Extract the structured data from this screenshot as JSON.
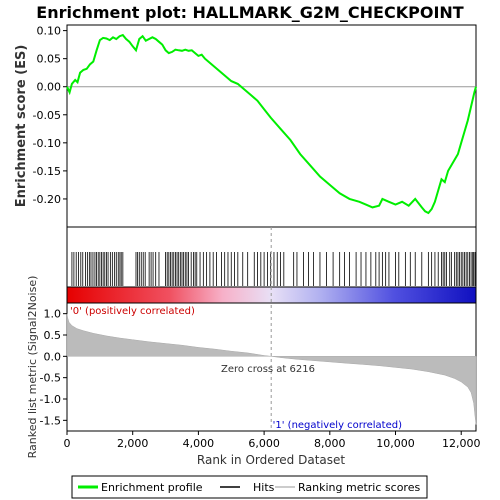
{
  "chart_data": {
    "type": "line",
    "title": "Enrichment plot: HALLMARK_G2M_CHECKPOINT",
    "es_panel": {
      "ylabel": "Enrichment score (ES)",
      "ylim": [
        -0.25,
        0.11
      ],
      "yticks": [
        0.1,
        0.05,
        0.0,
        -0.05,
        -0.1,
        -0.15,
        -0.2
      ],
      "ytick_labels": [
        "0.10",
        "0.05",
        "0.00",
        "-0.05",
        "-0.10",
        "-0.15",
        "-0.20"
      ],
      "series_color": "#00ee00",
      "profile": [
        [
          0,
          0.0
        ],
        [
          80,
          -0.01
        ],
        [
          150,
          0.005
        ],
        [
          250,
          0.012
        ],
        [
          320,
          0.008
        ],
        [
          400,
          0.025
        ],
        [
          500,
          0.03
        ],
        [
          600,
          0.032
        ],
        [
          700,
          0.04
        ],
        [
          800,
          0.045
        ],
        [
          900,
          0.065
        ],
        [
          1000,
          0.083
        ],
        [
          1100,
          0.087
        ],
        [
          1200,
          0.086
        ],
        [
          1300,
          0.083
        ],
        [
          1400,
          0.088
        ],
        [
          1500,
          0.085
        ],
        [
          1600,
          0.09
        ],
        [
          1700,
          0.092
        ],
        [
          1800,
          0.085
        ],
        [
          1900,
          0.08
        ],
        [
          2000,
          0.072
        ],
        [
          2100,
          0.065
        ],
        [
          2200,
          0.085
        ],
        [
          2300,
          0.09
        ],
        [
          2400,
          0.082
        ],
        [
          2500,
          0.085
        ],
        [
          2600,
          0.088
        ],
        [
          2700,
          0.085
        ],
        [
          2800,
          0.08
        ],
        [
          2900,
          0.075
        ],
        [
          3000,
          0.065
        ],
        [
          3100,
          0.06
        ],
        [
          3200,
          0.062
        ],
        [
          3300,
          0.066
        ],
        [
          3400,
          0.065
        ],
        [
          3500,
          0.064
        ],
        [
          3600,
          0.066
        ],
        [
          3700,
          0.064
        ],
        [
          3800,
          0.065
        ],
        [
          3900,
          0.06
        ],
        [
          4000,
          0.055
        ],
        [
          4100,
          0.057
        ],
        [
          4200,
          0.05
        ],
        [
          4400,
          0.04
        ],
        [
          4600,
          0.03
        ],
        [
          4800,
          0.02
        ],
        [
          5000,
          0.01
        ],
        [
          5200,
          0.005
        ],
        [
          5400,
          -0.005
        ],
        [
          5600,
          -0.015
        ],
        [
          5800,
          -0.025
        ],
        [
          6000,
          -0.04
        ],
        [
          6200,
          -0.055
        ],
        [
          6500,
          -0.075
        ],
        [
          6800,
          -0.095
        ],
        [
          7100,
          -0.12
        ],
        [
          7400,
          -0.14
        ],
        [
          7700,
          -0.16
        ],
        [
          8000,
          -0.175
        ],
        [
          8300,
          -0.19
        ],
        [
          8600,
          -0.2
        ],
        [
          8900,
          -0.205
        ],
        [
          9100,
          -0.21
        ],
        [
          9300,
          -0.215
        ],
        [
          9500,
          -0.212
        ],
        [
          9600,
          -0.2
        ],
        [
          9800,
          -0.205
        ],
        [
          10000,
          -0.21
        ],
        [
          10200,
          -0.205
        ],
        [
          10400,
          -0.212
        ],
        [
          10600,
          -0.2
        ],
        [
          10800,
          -0.215
        ],
        [
          10900,
          -0.222
        ],
        [
          11000,
          -0.225
        ],
        [
          11100,
          -0.218
        ],
        [
          11200,
          -0.205
        ],
        [
          11300,
          -0.185
        ],
        [
          11400,
          -0.165
        ],
        [
          11500,
          -0.17
        ],
        [
          11600,
          -0.15
        ],
        [
          11700,
          -0.14
        ],
        [
          11800,
          -0.13
        ],
        [
          11900,
          -0.12
        ],
        [
          12000,
          -0.1
        ],
        [
          12100,
          -0.08
        ],
        [
          12200,
          -0.06
        ],
        [
          12300,
          -0.035
        ],
        [
          12400,
          -0.01
        ],
        [
          12450,
          0.0
        ]
      ]
    },
    "hits_panel": {
      "hit_ranks": [
        150,
        210,
        280,
        350,
        420,
        480,
        560,
        620,
        680,
        730,
        790,
        850,
        900,
        950,
        1000,
        1050,
        1100,
        1150,
        1200,
        1250,
        1320,
        1380,
        1450,
        1500,
        1560,
        1610,
        1650,
        1700,
        2100,
        2150,
        2200,
        2260,
        2320,
        2380,
        2500,
        2560,
        2620,
        2700,
        2800,
        3000,
        3050,
        3100,
        3150,
        3200,
        3250,
        3300,
        3350,
        3400,
        3450,
        3500,
        3550,
        3600,
        3650,
        3700,
        3780,
        3850,
        3900,
        3950,
        4050,
        4150,
        4250,
        4350,
        4450,
        4550,
        4700,
        4800,
        4900,
        5000,
        5100,
        5200,
        5350,
        5500,
        5700,
        5800,
        5900,
        6000,
        6100,
        6200,
        6300,
        6400,
        6500,
        6600,
        6900,
        7000,
        7200,
        7350,
        7500,
        7700,
        7900,
        8100,
        8300,
        8450,
        8600,
        8800,
        8950,
        9100,
        9250,
        9400,
        9500,
        9600,
        9700,
        9800,
        10000,
        10100,
        10300,
        10450,
        10600,
        10800,
        11000,
        11100,
        11200,
        11300,
        11400,
        11450,
        11500,
        11550,
        11650,
        11700,
        11800,
        11850,
        11900,
        11950,
        12000,
        12050,
        12100,
        12150,
        12200,
        12250,
        12300,
        12350,
        12380,
        12420
      ],
      "zero_cross_rank": 6216
    },
    "metric_panel": {
      "ylabel": "Ranked list metric (Signal2Noise)",
      "xlabel": "Rank in Ordered Dataset",
      "xlim": [
        0,
        12450
      ],
      "xticks": [
        0,
        2000,
        4000,
        6000,
        8000,
        10000,
        12000
      ],
      "xtick_labels": [
        "0",
        "2,000",
        "4,000",
        "6,000",
        "8,000",
        "10,000",
        "12,000"
      ],
      "ylim": [
        -1.75,
        1.25
      ],
      "yticks": [
        1.0,
        0.5,
        0.0,
        -0.5,
        -1.0,
        -1.5
      ],
      "ytick_labels": [
        "1.0",
        "0.5",
        "0.0",
        "-0.5",
        "-1.0",
        "-1.5"
      ],
      "metric_curve": [
        [
          0,
          1.0
        ],
        [
          20,
          0.9
        ],
        [
          60,
          0.8
        ],
        [
          150,
          0.72
        ],
        [
          300,
          0.65
        ],
        [
          500,
          0.6
        ],
        [
          800,
          0.54
        ],
        [
          1200,
          0.48
        ],
        [
          1600,
          0.43
        ],
        [
          2000,
          0.39
        ],
        [
          2500,
          0.34
        ],
        [
          3000,
          0.3
        ],
        [
          3500,
          0.26
        ],
        [
          4000,
          0.21
        ],
        [
          4500,
          0.17
        ],
        [
          5000,
          0.12
        ],
        [
          5500,
          0.08
        ],
        [
          6000,
          0.02
        ],
        [
          6216,
          0.0
        ],
        [
          6500,
          -0.03
        ],
        [
          7000,
          -0.07
        ],
        [
          7500,
          -0.1
        ],
        [
          8000,
          -0.13
        ],
        [
          8500,
          -0.16
        ],
        [
          9000,
          -0.19
        ],
        [
          9500,
          -0.22
        ],
        [
          10000,
          -0.26
        ],
        [
          10500,
          -0.3
        ],
        [
          11000,
          -0.36
        ],
        [
          11500,
          -0.44
        ],
        [
          11800,
          -0.52
        ],
        [
          12000,
          -0.6
        ],
        [
          12200,
          -0.72
        ],
        [
          12300,
          -0.85
        ],
        [
          12380,
          -1.1
        ],
        [
          12420,
          -1.4
        ],
        [
          12450,
          -1.6
        ]
      ],
      "annotations": {
        "positive": "'0' (positively correlated)",
        "zero_cross": "Zero cross at 6216",
        "negative": "'1' (negatively correlated)"
      },
      "positive_color": "#cc0000",
      "negative_color": "#0000cc"
    },
    "legend": {
      "items": [
        {
          "label": "Enrichment profile",
          "color": "#00ee00"
        },
        {
          "label": "Hits",
          "color": "#000000"
        },
        {
          "label": "Ranking metric scores",
          "color": "#bbbbbb"
        }
      ]
    }
  }
}
